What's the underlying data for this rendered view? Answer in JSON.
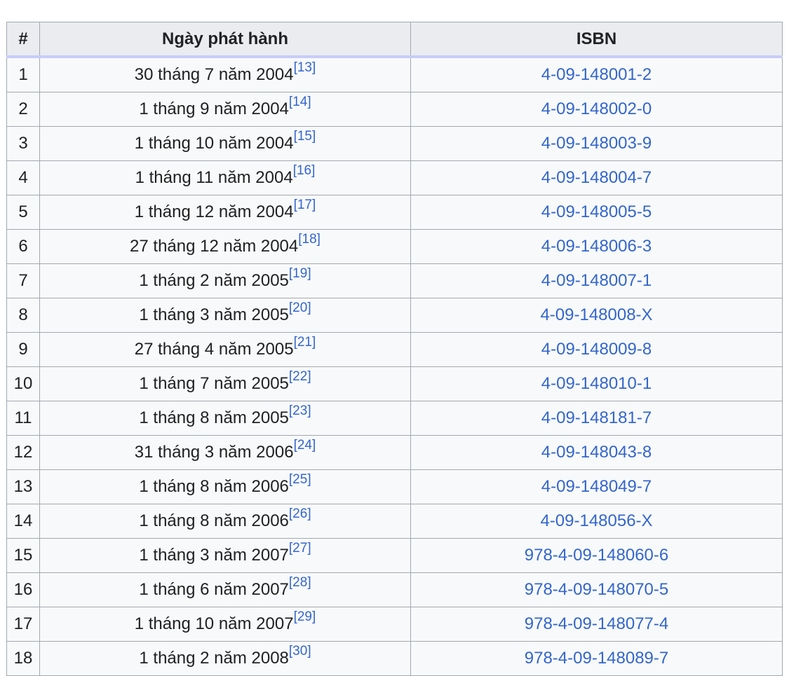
{
  "table": {
    "headers": {
      "number": "#",
      "release_date": "Ngày phát hành",
      "isbn": "ISBN"
    },
    "rows": [
      {
        "number": "1",
        "date": "30 tháng 7 năm 2004",
        "ref": "[13]",
        "isbn": "4-09-148001-2"
      },
      {
        "number": "2",
        "date": "1 tháng 9 năm 2004",
        "ref": "[14]",
        "isbn": "4-09-148002-0"
      },
      {
        "number": "3",
        "date": "1 tháng 10 năm 2004",
        "ref": "[15]",
        "isbn": "4-09-148003-9"
      },
      {
        "number": "4",
        "date": "1 tháng 11 năm 2004",
        "ref": "[16]",
        "isbn": "4-09-148004-7"
      },
      {
        "number": "5",
        "date": "1 tháng 12 năm 2004",
        "ref": "[17]",
        "isbn": "4-09-148005-5"
      },
      {
        "number": "6",
        "date": "27 tháng 12 năm 2004",
        "ref": "[18]",
        "isbn": "4-09-148006-3"
      },
      {
        "number": "7",
        "date": "1 tháng 2 năm 2005",
        "ref": "[19]",
        "isbn": "4-09-148007-1"
      },
      {
        "number": "8",
        "date": "1 tháng 3 năm 2005",
        "ref": "[20]",
        "isbn": "4-09-148008-X"
      },
      {
        "number": "9",
        "date": "27 tháng 4 năm 2005",
        "ref": "[21]",
        "isbn": "4-09-148009-8"
      },
      {
        "number": "10",
        "date": "1 tháng 7 năm 2005",
        "ref": "[22]",
        "isbn": "4-09-148010-1"
      },
      {
        "number": "11",
        "date": "1 tháng 8 năm 2005",
        "ref": "[23]",
        "isbn": "4-09-148181-7"
      },
      {
        "number": "12",
        "date": "31 tháng 3 năm 2006",
        "ref": "[24]",
        "isbn": "4-09-148043-8"
      },
      {
        "number": "13",
        "date": "1 tháng 8 năm 2006",
        "ref": "[25]",
        "isbn": "4-09-148049-7"
      },
      {
        "number": "14",
        "date": "1 tháng 8 năm 2006",
        "ref": "[26]",
        "isbn": "4-09-148056-X"
      },
      {
        "number": "15",
        "date": "1 tháng 3 năm 2007",
        "ref": "[27]",
        "isbn": "978-4-09-148060-6"
      },
      {
        "number": "16",
        "date": "1 tháng 6 năm 2007",
        "ref": "[28]",
        "isbn": "978-4-09-148070-5"
      },
      {
        "number": "17",
        "date": "1 tháng 10 năm 2007",
        "ref": "[29]",
        "isbn": "978-4-09-148077-4"
      },
      {
        "number": "18",
        "date": "1 tháng 2 năm 2008",
        "ref": "[30]",
        "isbn": "978-4-09-148089-7"
      }
    ]
  },
  "colors": {
    "link": "#3366cc",
    "header_bg": "#eaecf0",
    "cell_bg": "#f8f9fa",
    "border": "#a2a9b1",
    "header_underline": "#c8ccf9",
    "text": "#202122"
  }
}
